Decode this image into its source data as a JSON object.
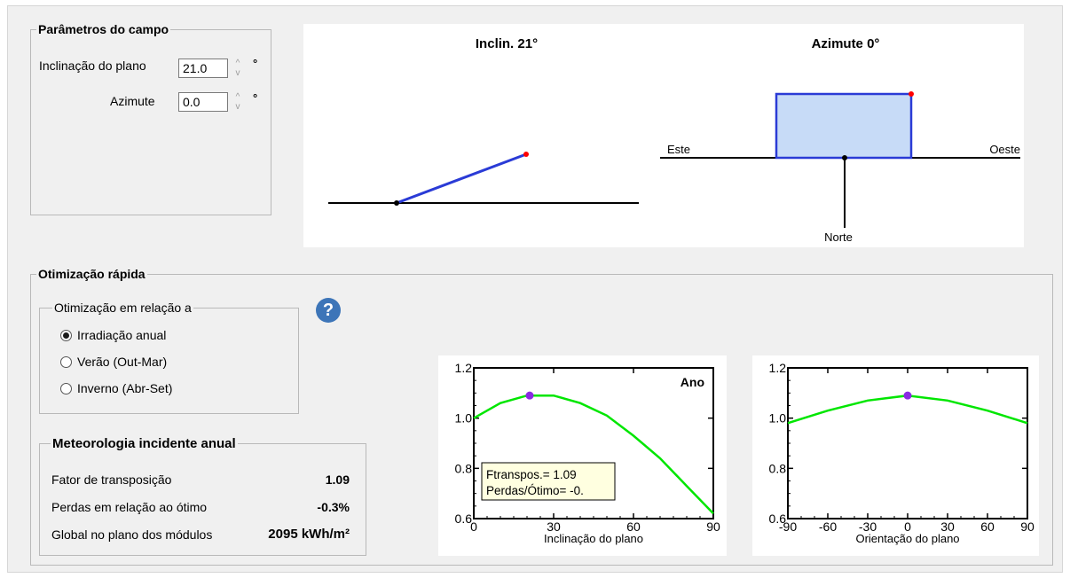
{
  "field_params": {
    "legend": "Parâmetros do campo",
    "tilt_label": "Inclinação do plano",
    "tilt_value": "21.0",
    "azimuth_label": "Azimute",
    "azimuth_value": "0.0",
    "degree_symbol": "°",
    "spin_up": "^",
    "spin_down": "v"
  },
  "diagram": {
    "tilt_title": "Inclin. 21°",
    "azimuth_title": "Azimute 0°",
    "east_label": "Este",
    "west_label": "Oeste",
    "north_label": "Norte",
    "plane_color": "#2a3bd6",
    "plane_fill": "#c7dbf7",
    "tip_color": "#ff0000"
  },
  "optimization": {
    "legend": "Otimização rápida",
    "sub_legend": "Otimização em relação a",
    "help_icon": "?",
    "options": [
      {
        "label": "Irradiação anual",
        "selected": true
      },
      {
        "label": "Verão (Out-Mar)",
        "selected": false
      },
      {
        "label": "Inverno (Abr-Set)",
        "selected": false
      }
    ]
  },
  "meteo": {
    "legend": "Meteorologia incidente anual",
    "rows": [
      {
        "label": "Fator de transposição",
        "value": "1.09"
      },
      {
        "label": "Perdas em relação ao ótimo",
        "value": "-0.3%"
      },
      {
        "label": "Global no plano dos módulos",
        "value": "2095 kWh/m²"
      }
    ]
  },
  "chart_data": [
    {
      "type": "line",
      "annotation": "Ano",
      "xlabel": "Inclinação do plano",
      "xlim": [
        0,
        90
      ],
      "ylim": [
        0.6,
        1.2
      ],
      "xticks": [
        0,
        30,
        60,
        90
      ],
      "yticks": [
        0.6,
        0.8,
        1.0,
        1.2
      ],
      "ytick_labels": [
        "0.6",
        "0.8",
        "1.0",
        "1.2"
      ],
      "x": [
        0,
        10,
        20,
        30,
        40,
        50,
        60,
        70,
        80,
        90
      ],
      "y": [
        1.0,
        1.06,
        1.09,
        1.09,
        1.06,
        1.01,
        0.93,
        0.84,
        0.73,
        0.62
      ],
      "optimum": {
        "x": 21,
        "y": 1.09
      },
      "line_color": "#00e600",
      "optimum_color": "#8a2be2",
      "info_box": [
        "Ftranspos.= 1.09",
        "Perdas/Ótimo= -0."
      ]
    },
    {
      "type": "line",
      "xlabel": "Orientação do plano",
      "xlim": [
        -90,
        90
      ],
      "ylim": [
        0.6,
        1.2
      ],
      "xticks": [
        -90,
        -60,
        -30,
        0,
        30,
        60,
        90
      ],
      "yticks": [
        0.6,
        0.8,
        1.0,
        1.2
      ],
      "ytick_labels": [
        "0.6",
        "0.8",
        "1.0",
        "1.2"
      ],
      "x": [
        -90,
        -60,
        -30,
        0,
        30,
        60,
        90
      ],
      "y": [
        0.98,
        1.03,
        1.07,
        1.09,
        1.07,
        1.03,
        0.98
      ],
      "optimum": {
        "x": 0,
        "y": 1.09
      },
      "line_color": "#00e600",
      "optimum_color": "#8a2be2"
    }
  ]
}
